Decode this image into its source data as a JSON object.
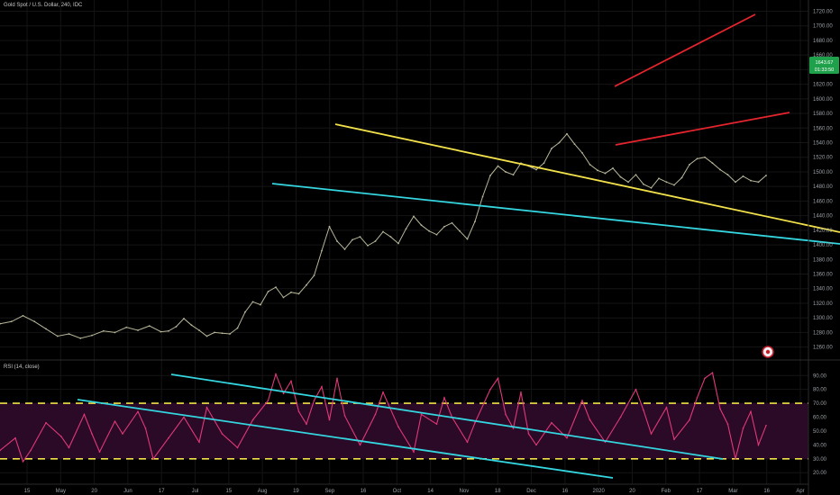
{
  "header": {
    "symbol_title": "Gold Spot / U.S. Dollar, 240, IDC"
  },
  "rsi_header": {
    "title": "RSI (14, close)"
  },
  "price_badge": {
    "price": "1643.67",
    "countdown": "01:33:50"
  },
  "colors": {
    "background": "#000000",
    "candles": "#b9b79a",
    "upper_wedge": "#e5242e",
    "descending_line": "#f2e14a",
    "support_line": "#34d6e0",
    "rsi_line": "#e2387a",
    "rsi_band": "#2a0a26",
    "rsi_levels": "#f2e14a",
    "grid": "#151515",
    "axis_text": "#9aa0a6",
    "price_badge": "#1fa04a"
  },
  "chart_data": [
    {
      "type": "line",
      "title": "Gold Spot / U.S. Dollar, 240, IDC",
      "x_tick_labels": [
        "15",
        "May",
        "20",
        "Jun",
        "17",
        "Jul",
        "15",
        "Aug",
        "19",
        "Sep",
        "16",
        "Oct",
        "14",
        "Nov",
        "18",
        "Dec",
        "16",
        "2020",
        "20",
        "Feb",
        "17",
        "Mar",
        "16",
        "Apr"
      ],
      "y_tick_labels": [
        "1260.00",
        "1280.00",
        "1300.00",
        "1320.00",
        "1340.00",
        "1360.00",
        "1380.00",
        "1400.00",
        "1420.00",
        "1440.00",
        "1460.00",
        "1480.00",
        "1500.00",
        "1520.00",
        "1540.00",
        "1560.00",
        "1580.00",
        "1600.00",
        "1620.00",
        "1640.00",
        "1660.00",
        "1680.00",
        "1700.00",
        "1720.00"
      ],
      "ylim": [
        1246,
        1728
      ],
      "x_index_range": [
        0,
        100
      ],
      "series": [
        {
          "values": [
            [
              0,
              1292
            ],
            [
              1.5,
              1295
            ],
            [
              3,
              1303
            ],
            [
              4.5,
              1295
            ],
            [
              6,
              1285
            ],
            [
              7.5,
              1275
            ],
            [
              9,
              1278
            ],
            [
              10.5,
              1272
            ],
            [
              12,
              1276
            ],
            [
              13.5,
              1282
            ],
            [
              15,
              1280
            ],
            [
              16.5,
              1287
            ],
            [
              18,
              1283
            ],
            [
              19.5,
              1289
            ],
            [
              21,
              1281
            ],
            [
              22,
              1282
            ],
            [
              23,
              1288
            ],
            [
              24,
              1299
            ],
            [
              25,
              1290
            ],
            [
              26,
              1283
            ],
            [
              27,
              1275
            ],
            [
              28,
              1280
            ],
            [
              29,
              1279
            ],
            [
              30,
              1278
            ],
            [
              31,
              1286
            ],
            [
              32,
              1308
            ],
            [
              33,
              1322
            ],
            [
              34,
              1318
            ],
            [
              35,
              1336
            ],
            [
              36,
              1342
            ],
            [
              37,
              1328
            ],
            [
              38,
              1335
            ],
            [
              39,
              1333
            ],
            [
              40,
              1345
            ],
            [
              41,
              1358
            ],
            [
              42,
              1392
            ],
            [
              43,
              1425
            ],
            [
              44,
              1405
            ],
            [
              45,
              1394
            ],
            [
              46,
              1407
            ],
            [
              47,
              1411
            ],
            [
              48,
              1399
            ],
            [
              49,
              1405
            ],
            [
              50,
              1418
            ],
            [
              51,
              1411
            ],
            [
              52,
              1402
            ],
            [
              53,
              1422
            ],
            [
              54,
              1439
            ],
            [
              55,
              1427
            ],
            [
              56,
              1419
            ],
            [
              57,
              1414
            ],
            [
              58,
              1425
            ],
            [
              59,
              1430
            ],
            [
              60,
              1419
            ],
            [
              61,
              1408
            ],
            [
              62,
              1432
            ],
            [
              63,
              1466
            ],
            [
              64,
              1495
            ],
            [
              65,
              1508
            ],
            [
              66,
              1500
            ],
            [
              67,
              1496
            ],
            [
              68,
              1512
            ],
            [
              69,
              1508
            ],
            [
              70,
              1503
            ],
            [
              71,
              1512
            ],
            [
              72,
              1532
            ],
            [
              73,
              1540
            ],
            [
              74,
              1552
            ],
            [
              75,
              1538
            ],
            [
              76,
              1526
            ],
            [
              77,
              1510
            ],
            [
              78,
              1502
            ],
            [
              79,
              1498
            ],
            [
              80,
              1505
            ],
            [
              81,
              1493
            ],
            [
              82,
              1486
            ],
            [
              83,
              1496
            ],
            [
              84,
              1483
            ],
            [
              85,
              1478
            ],
            [
              86,
              1491
            ],
            [
              87,
              1486
            ],
            [
              88,
              1482
            ],
            [
              89,
              1492
            ],
            [
              90,
              1510
            ],
            [
              91,
              1518
            ],
            [
              92,
              1520
            ],
            [
              93,
              1512
            ],
            [
              94,
              1503
            ],
            [
              95,
              1496
            ],
            [
              96,
              1486
            ],
            [
              97,
              1494
            ],
            [
              98,
              1488
            ],
            [
              99,
              1486
            ],
            [
              100,
              1495
            ]
          ]
        }
      ]
    },
    {
      "type": "line",
      "title": "RSI (14, close)",
      "y_tick_labels": [
        "20.00",
        "30.00",
        "40.00",
        "50.00",
        "60.00",
        "70.00",
        "80.00",
        "90.00"
      ],
      "ylim": [
        13,
        96
      ],
      "reference_levels": [
        30,
        70
      ],
      "series": [
        {
          "values": [
            [
              0,
              36
            ],
            [
              2,
              45
            ],
            [
              3,
              28
            ],
            [
              4,
              36
            ],
            [
              6,
              56
            ],
            [
              8,
              46
            ],
            [
              9,
              38
            ],
            [
              11,
              62
            ],
            [
              12,
              48
            ],
            [
              13,
              35
            ],
            [
              15,
              57
            ],
            [
              16,
              48
            ],
            [
              18,
              64
            ],
            [
              19,
              52
            ],
            [
              20,
              30
            ],
            [
              22,
              45
            ],
            [
              24,
              60
            ],
            [
              26,
              42
            ],
            [
              27,
              67
            ],
            [
              29,
              48
            ],
            [
              31,
              38
            ],
            [
              33,
              58
            ],
            [
              35,
              72
            ],
            [
              36,
              91
            ],
            [
              37,
              77
            ],
            [
              38,
              86
            ],
            [
              39,
              64
            ],
            [
              40,
              55
            ],
            [
              41,
              72
            ],
            [
              42,
              82
            ],
            [
              43,
              58
            ],
            [
              44,
              88
            ],
            [
              45,
              61
            ],
            [
              47,
              40
            ],
            [
              49,
              62
            ],
            [
              50,
              78
            ],
            [
              52,
              53
            ],
            [
              54,
              35
            ],
            [
              55,
              62
            ],
            [
              57,
              55
            ],
            [
              58,
              74
            ],
            [
              59,
              60
            ],
            [
              61,
              42
            ],
            [
              62,
              56
            ],
            [
              64,
              80
            ],
            [
              65,
              88
            ],
            [
              66,
              62
            ],
            [
              67,
              52
            ],
            [
              68,
              78
            ],
            [
              69,
              48
            ],
            [
              70,
              40
            ],
            [
              72,
              56
            ],
            [
              74,
              45
            ],
            [
              76,
              72
            ],
            [
              77,
              58
            ],
            [
              79,
              42
            ],
            [
              81,
              60
            ],
            [
              83,
              80
            ],
            [
              84,
              65
            ],
            [
              85,
              48
            ],
            [
              87,
              67
            ],
            [
              88,
              44
            ],
            [
              90,
              58
            ],
            [
              91,
              74
            ],
            [
              92,
              88
            ],
            [
              93,
              92
            ],
            [
              94,
              66
            ],
            [
              95,
              55
            ],
            [
              96,
              30
            ],
            [
              97,
              52
            ],
            [
              98,
              64
            ],
            [
              99,
              40
            ],
            [
              100,
              54
            ]
          ]
        }
      ]
    }
  ]
}
